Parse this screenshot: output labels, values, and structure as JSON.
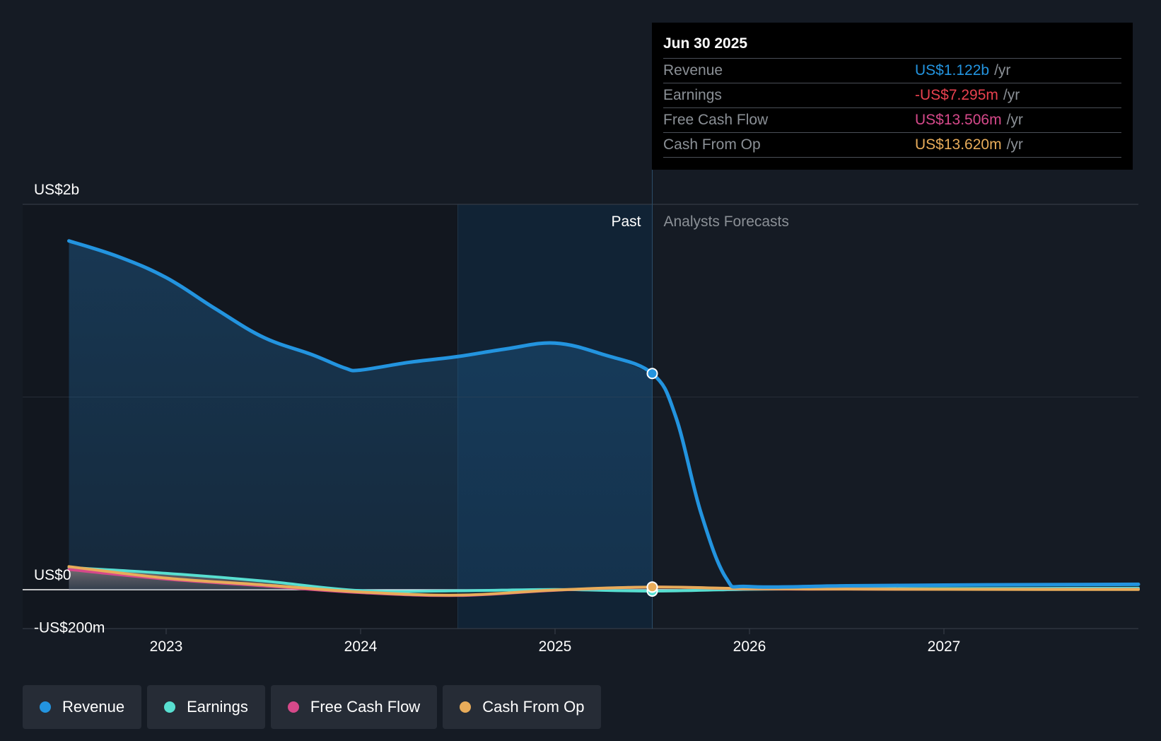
{
  "chart_data": {
    "type": "area",
    "y_axis": {
      "labels": [
        "US$2b",
        "US$0",
        "-US$200m"
      ],
      "ylim": [
        -200,
        2000
      ],
      "units": "US$m"
    },
    "x_axis": {
      "tick_labels": [
        "2023",
        "2024",
        "2025",
        "2026",
        "2027"
      ],
      "tick_values": [
        2023,
        2024,
        2025,
        2026,
        2027
      ],
      "xlim": [
        2022.27,
        2028.0
      ]
    },
    "past_label": "Past",
    "forecast_label": "Analysts Forecasts",
    "divider_x": 2025.5,
    "highlight_range": [
      2024.5,
      2025.5
    ],
    "series": [
      {
        "name": "Revenue",
        "color": "#2394df",
        "fill": true,
        "x": [
          2022.5,
          2022.75,
          2023.0,
          2023.25,
          2023.5,
          2023.75,
          2023.92,
          2024.0,
          2024.25,
          2024.5,
          2024.75,
          2025.0,
          2025.25,
          2025.5,
          2025.62,
          2025.75,
          2025.88,
          2026.0,
          2026.5,
          2027.0,
          2027.5,
          2028.0
        ],
        "values": [
          1810,
          1730,
          1620,
          1460,
          1310,
          1220,
          1150,
          1140,
          1180,
          1210,
          1250,
          1280,
          1220,
          1122,
          900,
          400,
          60,
          16,
          20,
          24,
          26,
          28
        ]
      },
      {
        "name": "Earnings",
        "color": "#58dfd1",
        "x": [
          2022.5,
          2023.0,
          2023.5,
          2024.0,
          2024.5,
          2025.0,
          2025.5,
          2026.0,
          2026.5,
          2027.0,
          2027.5,
          2028.0
        ],
        "values": [
          115,
          85,
          45,
          -5,
          -6,
          1,
          -7.295,
          2,
          5,
          6,
          7,
          8
        ]
      },
      {
        "name": "Free Cash Flow",
        "color": "#d6498a",
        "x": [
          2022.5,
          2023.0,
          2023.5,
          2024.0,
          2024.5,
          2025.0,
          2025.5,
          2026.0,
          2026.5,
          2027.0,
          2027.5,
          2028.0
        ],
        "values": [
          105,
          55,
          20,
          -15,
          -30,
          -3,
          13.506,
          4,
          3,
          2,
          2,
          2
        ]
      },
      {
        "name": "Cash From Op",
        "color": "#e8ac5a",
        "x": [
          2022.5,
          2023.0,
          2023.5,
          2024.0,
          2024.5,
          2025.0,
          2025.5,
          2026.0,
          2026.5,
          2027.0,
          2027.5,
          2028.0
        ],
        "values": [
          120,
          60,
          25,
          -12,
          -28,
          -2,
          13.62,
          5,
          3,
          2,
          1,
          1
        ]
      }
    ]
  },
  "tooltip": {
    "date": "Jun 30 2025",
    "rows": [
      {
        "label": "Revenue",
        "value": "US$1.122b",
        "unit": "/yr",
        "color": "#2394df"
      },
      {
        "label": "Earnings",
        "value": "-US$7.295m",
        "unit": "/yr",
        "color": "#e8414f"
      },
      {
        "label": "Free Cash Flow",
        "value": "US$13.506m",
        "unit": "/yr",
        "color": "#d6498a"
      },
      {
        "label": "Cash From Op",
        "value": "US$13.620m",
        "unit": "/yr",
        "color": "#e8ac5a"
      }
    ]
  },
  "legend": [
    {
      "label": "Revenue",
      "color": "#2394df"
    },
    {
      "label": "Earnings",
      "color": "#58dfd1"
    },
    {
      "label": "Free Cash Flow",
      "color": "#d6498a"
    },
    {
      "label": "Cash From Op",
      "color": "#e8ac5a"
    }
  ]
}
